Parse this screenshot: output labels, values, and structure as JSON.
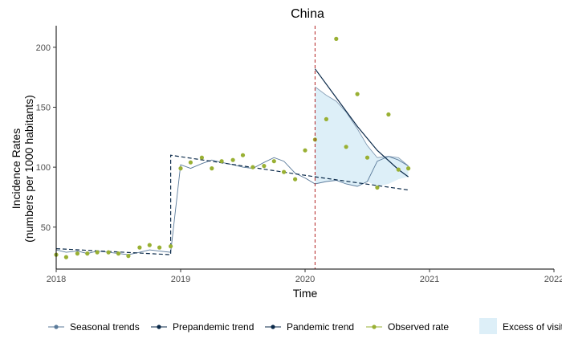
{
  "chart_data": {
    "type": "line",
    "title": "China",
    "xlabel": "Time",
    "ylabel_line1": "Incidence Rates",
    "ylabel_line2": "(numbers per 1000 habitants)",
    "xlim": [
      2018,
      2022
    ],
    "ylim": [
      15,
      218
    ],
    "x_ticks": [
      2018,
      2019,
      2020,
      2021,
      2022
    ],
    "x_tick_labels": [
      "2018",
      "2019",
      "2020",
      "2021",
      "2022"
    ],
    "y_ticks": [
      50,
      100,
      150,
      200
    ],
    "y_tick_labels": [
      "50",
      "100",
      "150",
      "200"
    ],
    "intervention_x": 2020.08,
    "series": [
      {
        "name": "Seasonal trends",
        "color": "#5a7a9a",
        "x": [
          2018.0,
          2018.08,
          2018.17,
          2018.25,
          2018.33,
          2018.42,
          2018.5,
          2018.58,
          2018.67,
          2018.75,
          2018.83,
          2018.92,
          2019.0,
          2019.08,
          2019.17,
          2019.25,
          2019.33,
          2019.42,
          2019.5,
          2019.58,
          2019.67,
          2019.75,
          2019.83,
          2019.92,
          2020.0,
          2020.08,
          2020.17,
          2020.25,
          2020.33,
          2020.42,
          2020.5,
          2020.58,
          2020.67,
          2020.75,
          2020.83
        ],
        "y": [
          31,
          29,
          30,
          28,
          30,
          29,
          28,
          27,
          29,
          31,
          30,
          29,
          102,
          99,
          103,
          106,
          104,
          102,
          100,
          99,
          104,
          108,
          105,
          95,
          91,
          86,
          88,
          89,
          86,
          84,
          88,
          105,
          109,
          106,
          101
        ]
      },
      {
        "name": "Prepandemic trend",
        "color": "#0b2a4a",
        "dash": "5,3",
        "x": [
          2018.0,
          2018.92,
          2018.92,
          2020.08,
          2020.83
        ],
        "y": [
          32,
          27,
          110,
          92,
          81
        ]
      },
      {
        "name": "Pandemic trend",
        "color": "#0b2a4a",
        "x": [
          2020.08,
          2020.25,
          2020.42,
          2020.58,
          2020.75,
          2020.83
        ],
        "y": [
          182,
          158,
          134,
          114,
          98,
          92
        ]
      },
      {
        "name": "Observed rate",
        "color": "#99b033",
        "points": true,
        "x": [
          2018.0,
          2018.08,
          2018.17,
          2018.25,
          2018.33,
          2018.42,
          2018.5,
          2018.58,
          2018.67,
          2018.75,
          2018.83,
          2018.92,
          2019.0,
          2019.08,
          2019.17,
          2019.25,
          2019.33,
          2019.42,
          2019.5,
          2019.58,
          2019.67,
          2019.75,
          2019.83,
          2019.92,
          2020.0,
          2020.08,
          2020.17,
          2020.25,
          2020.33,
          2020.42,
          2020.5,
          2020.58,
          2020.67,
          2020.75,
          2020.83
        ],
        "y": [
          27,
          25,
          28,
          28,
          29,
          29,
          28,
          26,
          33,
          35,
          33,
          34,
          99,
          104,
          108,
          99,
          105,
          106,
          110,
          100,
          101,
          105,
          96,
          90,
          114,
          123,
          140,
          207,
          117,
          161,
          108,
          83,
          144,
          98,
          99
        ]
      }
    ],
    "band": {
      "name": "Excess of visits",
      "color": "#ddeff8",
      "x": [
        2020.08,
        2020.17,
        2020.25,
        2020.33,
        2020.42,
        2020.5,
        2020.58,
        2020.67,
        2020.75,
        2020.83
      ],
      "upper": [
        167,
        160,
        155,
        146,
        132,
        118,
        108,
        109,
        108,
        101
      ],
      "lower": [
        86,
        88,
        89,
        86,
        84,
        88,
        84,
        86,
        90,
        92
      ]
    },
    "legend_position": "bottom",
    "grid": false
  }
}
